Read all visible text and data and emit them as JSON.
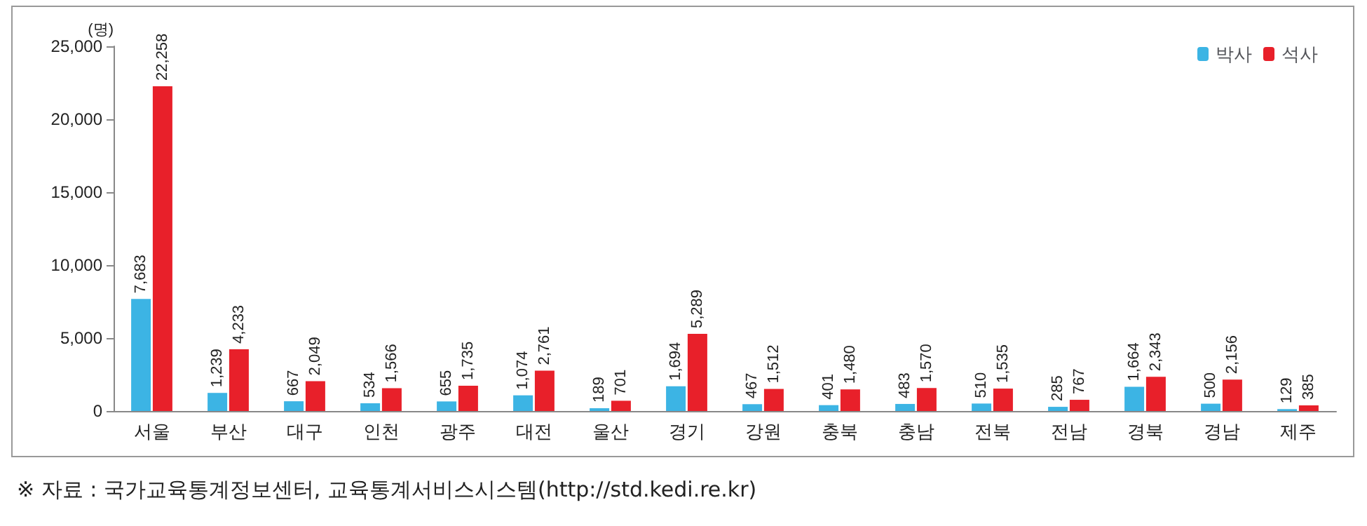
{
  "chart_data": {
    "type": "bar",
    "ylabel": "(명)",
    "categories": [
      "서울",
      "부산",
      "대구",
      "인천",
      "광주",
      "대전",
      "울산",
      "경기",
      "강원",
      "충북",
      "충남",
      "전북",
      "전남",
      "경북",
      "경남",
      "제주"
    ],
    "series": [
      {
        "name": "박사",
        "color": "#3cb4e4",
        "values": [
          7683,
          1239,
          667,
          534,
          655,
          1074,
          189,
          1694,
          467,
          401,
          483,
          510,
          285,
          1664,
          500,
          129
        ],
        "value_labels": [
          "7,683",
          "1,239",
          "667",
          "534",
          "655",
          "1,074",
          "189",
          "1,694",
          "467",
          "401",
          "483",
          "510",
          "285",
          "1,664",
          "500",
          "129"
        ]
      },
      {
        "name": "석사",
        "color": "#e8202a",
        "values": [
          22258,
          4233,
          2049,
          1566,
          1735,
          2761,
          701,
          5289,
          1512,
          1480,
          1570,
          1535,
          767,
          2343,
          2156,
          385
        ],
        "value_labels": [
          "22,258",
          "4,233",
          "2,049",
          "1,566",
          "1,735",
          "2,761",
          "701",
          "5,289",
          "1,512",
          "1,480",
          "1,570",
          "1,535",
          "767",
          "2,343",
          "2,156",
          "385"
        ]
      }
    ],
    "ylim": [
      0,
      25000
    ],
    "yticks": [
      {
        "value": 0,
        "label": "0"
      },
      {
        "value": 5000,
        "label": "5,000"
      },
      {
        "value": 10000,
        "label": "10,000"
      },
      {
        "value": 15000,
        "label": "15,000"
      },
      {
        "value": 20000,
        "label": "20,000"
      },
      {
        "value": 25000,
        "label": "25,000"
      }
    ],
    "legend": "top right",
    "grid": false,
    "annotations": [
      "※ 자료 : 국가교육통계정보센터, 교육통계서비스시스템(http://std.kedi.re.kr)"
    ]
  }
}
